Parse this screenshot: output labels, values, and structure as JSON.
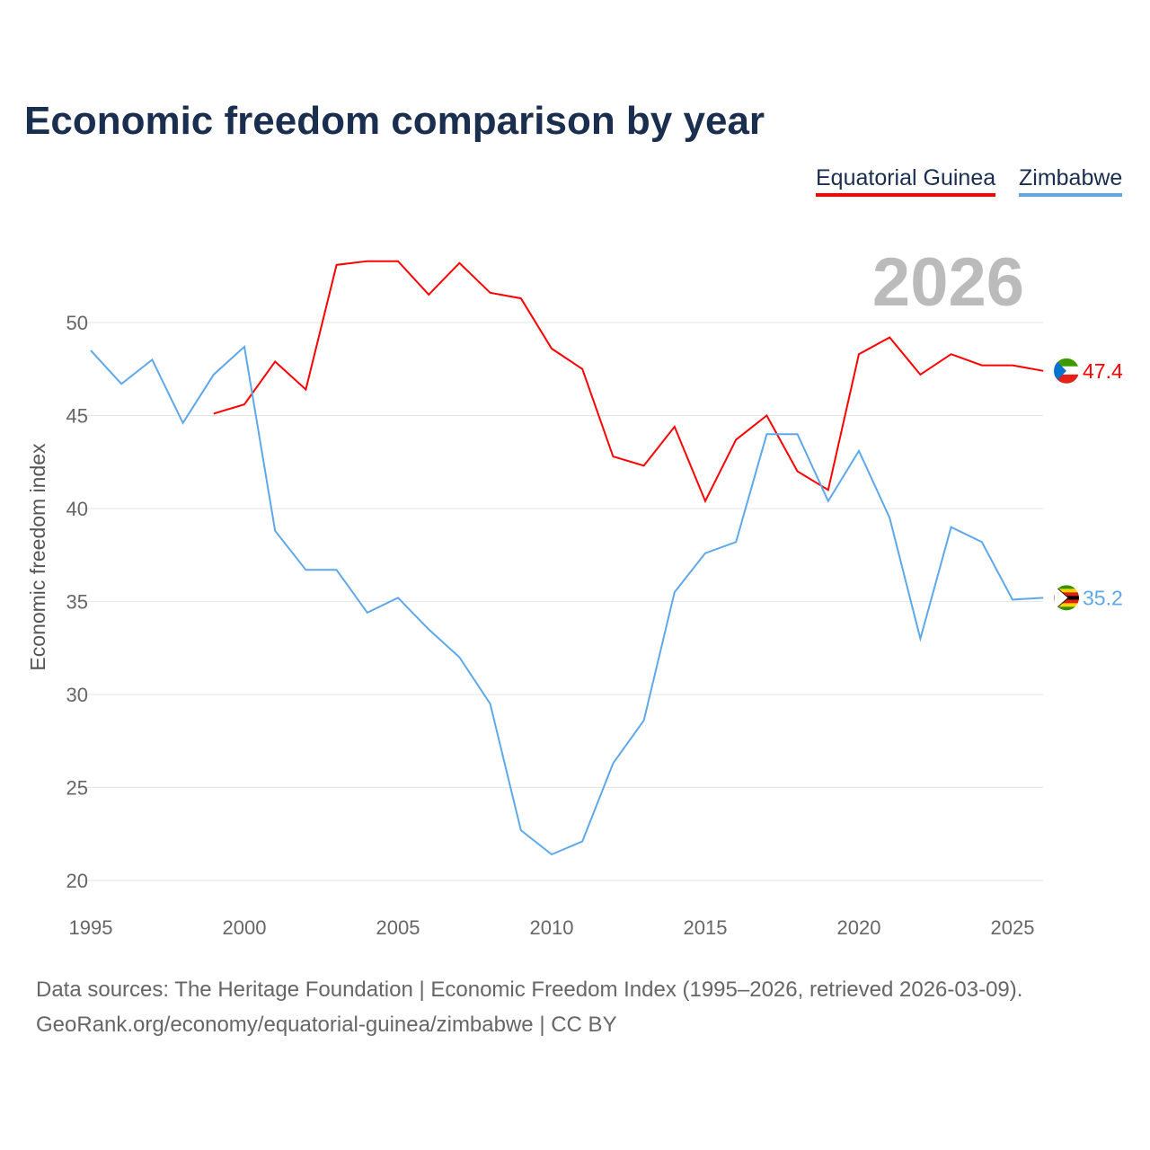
{
  "chart_data": {
    "type": "line",
    "title": "Economic freedom comparison by year",
    "xlabel": "",
    "ylabel": "Economic freedom index",
    "ylim": [
      20,
      53.5
    ],
    "xlim": [
      1995,
      2026
    ],
    "yticks": [
      20,
      25,
      30,
      35,
      40,
      45,
      50
    ],
    "xticks": [
      1995,
      2000,
      2005,
      2010,
      2015,
      2020,
      2025
    ],
    "grid": true,
    "legend_position": "top-right",
    "year_label": "2026",
    "series": [
      {
        "name": "Equatorial Guinea",
        "color": "#ff0000",
        "end_label": "47.4",
        "x": [
          1999,
          2000,
          2001,
          2002,
          2003,
          2004,
          2005,
          2006,
          2007,
          2008,
          2009,
          2010,
          2011,
          2012,
          2013,
          2014,
          2015,
          2016,
          2017,
          2018,
          2019,
          2020,
          2021,
          2022,
          2023,
          2024,
          2025,
          2026
        ],
        "values": [
          45.1,
          45.6,
          47.9,
          46.4,
          53.1,
          53.3,
          53.3,
          51.5,
          53.2,
          51.6,
          51.3,
          48.6,
          47.5,
          42.8,
          42.3,
          44.4,
          40.4,
          43.7,
          45.0,
          42.0,
          41.0,
          48.3,
          49.2,
          47.2,
          48.3,
          47.7,
          47.7,
          47.4
        ]
      },
      {
        "name": "Zimbabwe",
        "color": "#5ea8ea",
        "end_label": "35.2",
        "x": [
          1995,
          1996,
          1997,
          1998,
          1999,
          2000,
          2001,
          2002,
          2003,
          2004,
          2005,
          2006,
          2007,
          2008,
          2009,
          2010,
          2011,
          2012,
          2013,
          2014,
          2015,
          2016,
          2017,
          2018,
          2019,
          2020,
          2021,
          2022,
          2023,
          2024,
          2025,
          2026
        ],
        "values": [
          48.5,
          46.7,
          48.0,
          44.6,
          47.2,
          48.7,
          38.8,
          36.7,
          36.7,
          34.4,
          35.2,
          33.5,
          32.0,
          29.5,
          22.7,
          21.4,
          22.1,
          26.3,
          28.6,
          35.5,
          37.6,
          38.2,
          44.0,
          44.0,
          40.4,
          43.1,
          39.5,
          33.0,
          39.0,
          38.2,
          35.1,
          35.2
        ]
      }
    ]
  },
  "footer": {
    "line1": "Data sources: The Heritage Foundation | Economic Freedom Index (1995–2026, retrieved 2026-03-09).",
    "line2": "GeoRank.org/economy/equatorial-guinea/zimbabwe | CC BY"
  }
}
